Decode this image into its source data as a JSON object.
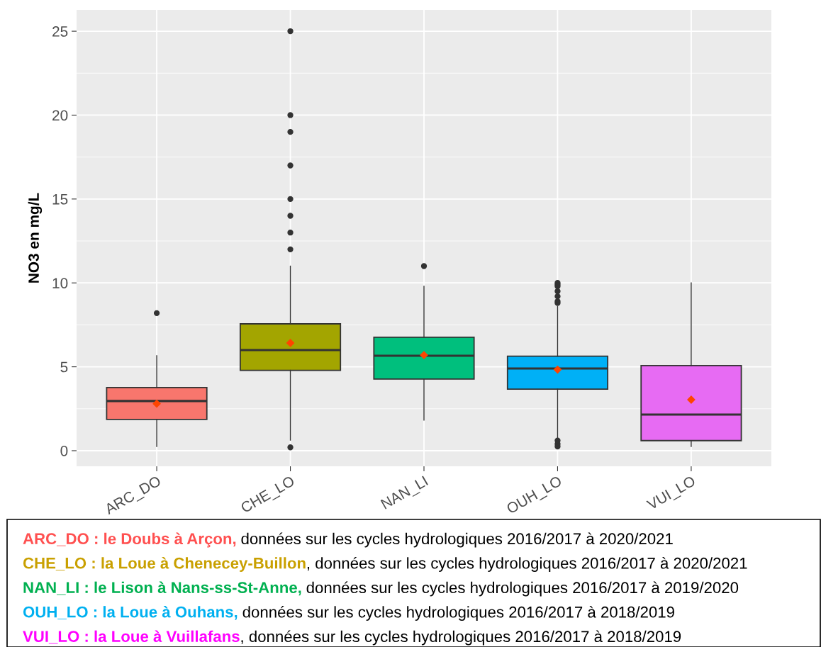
{
  "chart_data": {
    "type": "box",
    "ylabel": "NO3 en mg/L",
    "categories": [
      "ARC_DO",
      "CHE_LO",
      "NAN_LI",
      "OUH_LO",
      "VUI_LO"
    ],
    "colors": [
      "#f8766d",
      "#a3a500",
      "#00bf7d",
      "#00b0f6",
      "#e76bf3"
    ],
    "boxes": [
      {
        "low": 0.25,
        "q1": 1.86,
        "median": 2.96,
        "q3": 3.76,
        "high": 5.66,
        "mean": 2.8,
        "outliers": [
          8.2
        ]
      },
      {
        "low": 0.63,
        "q1": 4.79,
        "median": 6.0,
        "q3": 7.56,
        "high": 11.0,
        "mean": 6.42,
        "outliers": [
          0.2,
          12,
          13,
          14,
          15,
          17,
          19,
          20,
          25
        ]
      },
      {
        "low": 1.82,
        "q1": 4.27,
        "median": 5.66,
        "q3": 6.76,
        "high": 9.8,
        "mean": 5.7,
        "outliers": [
          11.0
        ]
      },
      {
        "low": 0.6,
        "q1": 3.67,
        "median": 4.9,
        "q3": 5.63,
        "high": 8.6,
        "mean": 4.83,
        "outliers": [
          0.25,
          0.4,
          0.6,
          8.8,
          8.9,
          9.2,
          9.5,
          9.8,
          9.9,
          10.0
        ]
      },
      {
        "low": 0.25,
        "q1": 0.6,
        "median": 2.15,
        "q3": 5.07,
        "high": 10.0,
        "mean": 3.04
      }
    ],
    "ylim": [
      -0.93,
      26.27
    ],
    "yticks": [
      0,
      5,
      10,
      15,
      20,
      25
    ],
    "grid": true,
    "annotations": [
      "ARC_DO : le Doubs à Arçon,",
      " données sur les cycles hydrologiques 2016/2017 à 2020/2021",
      "CHE_LO : la Loue à Chenecey-Buillon",
      ", données sur les cycles hydrologiques 2016/2017 à 2020/2021",
      "NAN_LI : le Lison à Nans-ss-St-Anne,",
      " données sur les cycles hydrologiques 2016/2017 à 2019/2020",
      "OUH_LO : la Loue à Ouhans,",
      " données sur les cycles hydrologiques 2016/2017 à 2018/2019",
      "VUI_LO : la Loue à Vuillafans",
      ", données sur les cycles hydrologiques 2016/2017 à 2018/2019"
    ]
  }
}
